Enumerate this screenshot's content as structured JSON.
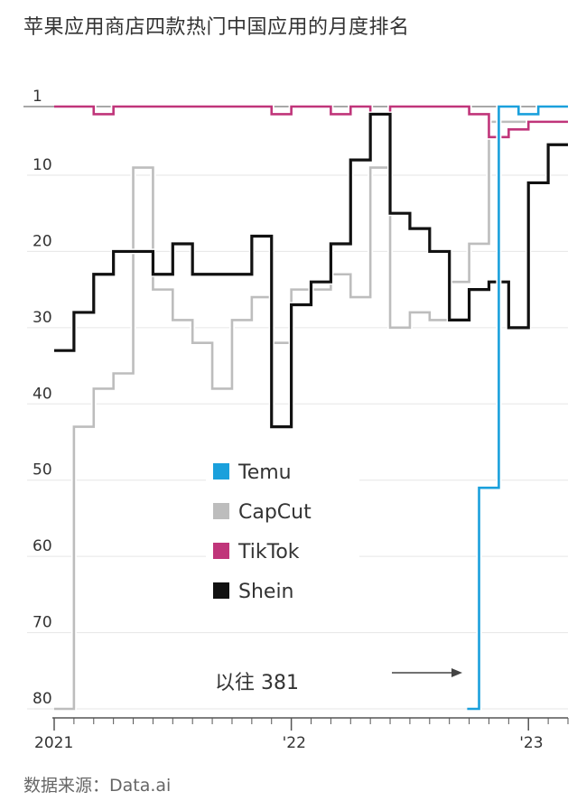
{
  "title": "苹果应用商店四款热门中国应用的月度排名",
  "source": "数据来源：Data.ai",
  "annotation": "以往 381",
  "chart_data": {
    "type": "line",
    "step": true,
    "y_inverted": true,
    "ylim": [
      1,
      80
    ],
    "xlim": [
      0,
      26
    ],
    "y_ticks": [
      1,
      10,
      20,
      30,
      40,
      50,
      60,
      70,
      80
    ],
    "x_ticks": [
      {
        "x": 0,
        "label": "2021"
      },
      {
        "x": 12,
        "label": "'22"
      },
      {
        "x": 24,
        "label": "'23"
      }
    ],
    "grid": true,
    "legend_position": "center",
    "series": [
      {
        "name": "Temu",
        "color": "#1aa0dc",
        "x": [
          20.9,
          21.5,
          22.5,
          23.5,
          24.5
        ],
        "values": [
          80,
          51,
          1,
          2,
          1
        ]
      },
      {
        "name": "CapCut",
        "color": "#bdbdbd",
        "x": [
          0,
          1,
          2,
          3,
          4,
          5,
          6,
          7,
          8,
          9,
          10,
          11,
          12,
          13,
          14,
          15,
          16,
          17,
          18,
          19,
          20,
          21,
          22,
          23,
          24,
          25
        ],
        "values": [
          80,
          43,
          38,
          36,
          9,
          25,
          29,
          32,
          38,
          29,
          26,
          32,
          25,
          25,
          23,
          26,
          9,
          30,
          28,
          29,
          24,
          19,
          3,
          3,
          3,
          3
        ]
      },
      {
        "name": "TikTok",
        "color": "#c0357a",
        "x": [
          0,
          1,
          2,
          3,
          4,
          5,
          6,
          7,
          8,
          9,
          10,
          11,
          12,
          13,
          14,
          15,
          16,
          17,
          18,
          19,
          20,
          21,
          22,
          23,
          24,
          25
        ],
        "values": [
          1,
          1,
          2,
          1,
          1,
          1,
          1,
          1,
          1,
          1,
          1,
          2,
          1,
          1,
          2,
          1,
          2,
          1,
          1,
          1,
          1,
          2,
          5,
          4,
          3,
          3
        ]
      },
      {
        "name": "Shein",
        "color": "#111111",
        "x": [
          0,
          1,
          2,
          3,
          4,
          5,
          6,
          7,
          8,
          9,
          10,
          11,
          12,
          13,
          14,
          15,
          16,
          17,
          18,
          19,
          20,
          21,
          22,
          23,
          24,
          25
        ],
        "values": [
          33,
          28,
          23,
          20,
          20,
          23,
          19,
          23,
          23,
          23,
          18,
          43,
          27,
          24,
          19,
          8,
          2,
          15,
          17,
          20,
          29,
          25,
          24,
          30,
          11,
          6
        ]
      }
    ]
  }
}
